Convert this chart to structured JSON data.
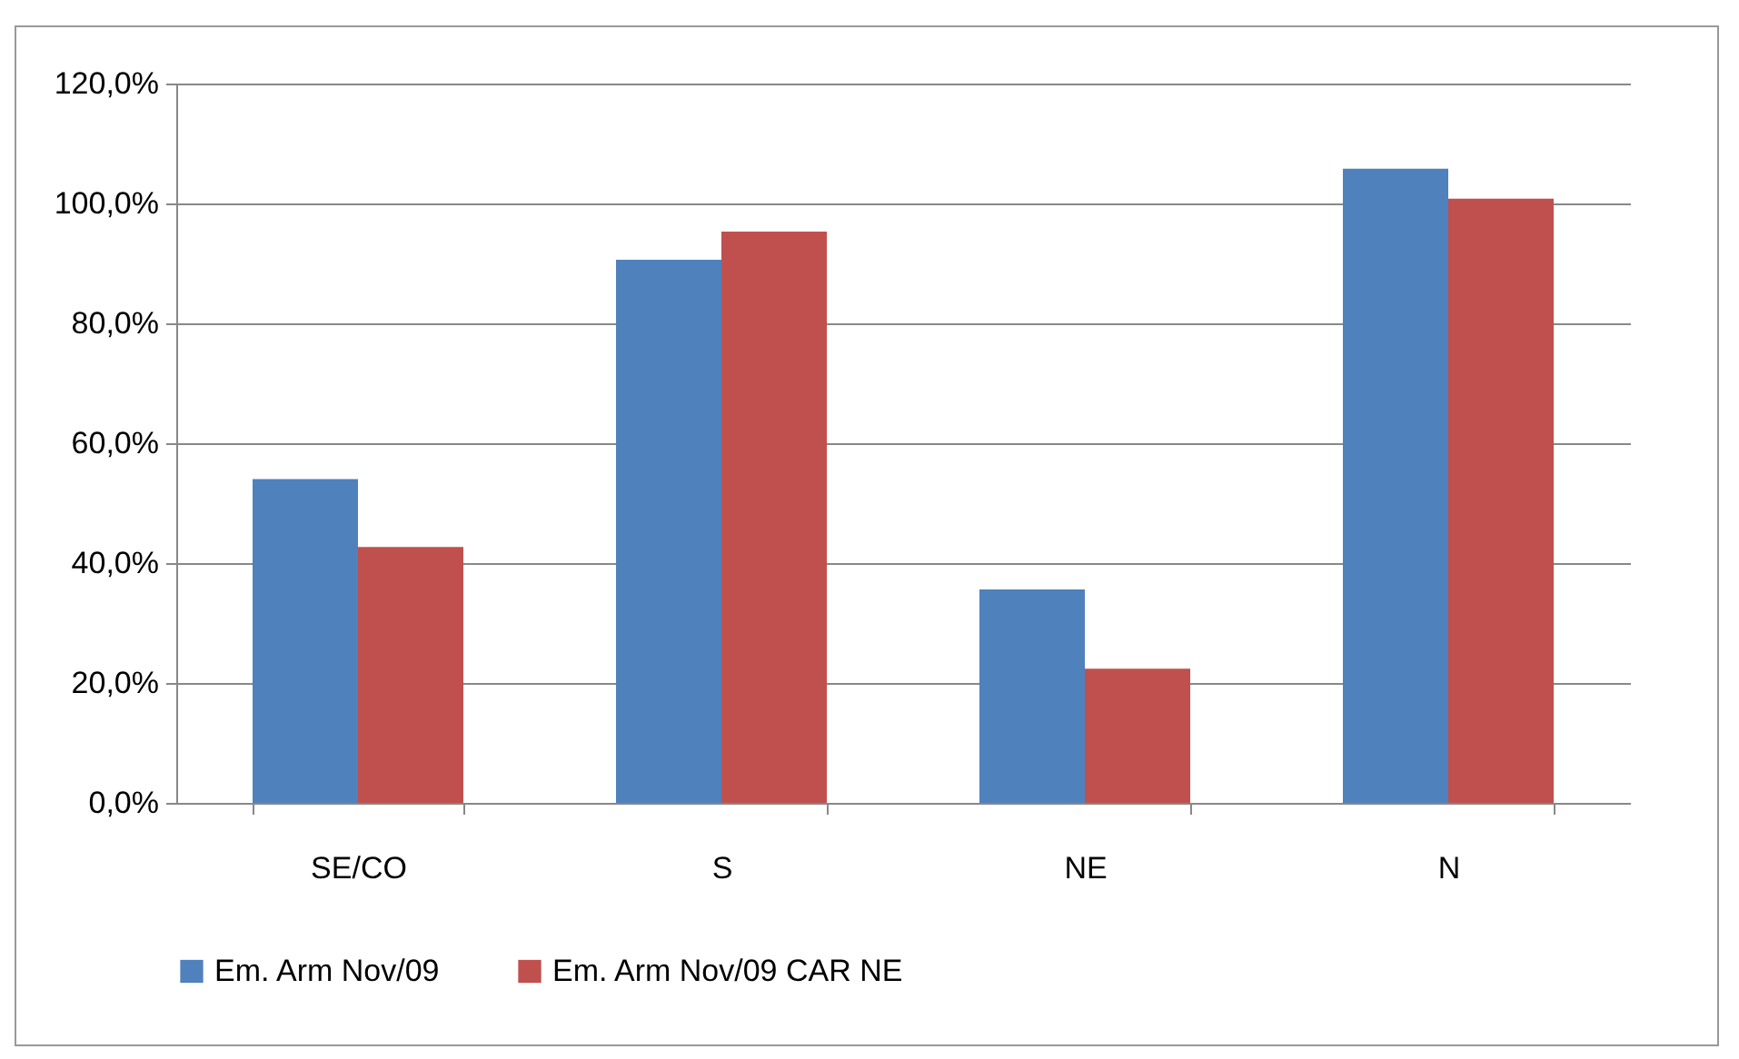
{
  "chart_data": {
    "type": "bar",
    "categories": [
      "SE/CO",
      "S",
      "NE",
      "N"
    ],
    "series": [
      {
        "name": "Em. Arm Nov/09",
        "color": "#4f81bd",
        "values": [
          54.0,
          90.6,
          35.6,
          105.8
        ]
      },
      {
        "name": "Em. Arm Nov/09 CAR NE",
        "color": "#c0504d",
        "values": [
          42.7,
          95.3,
          22.4,
          100.8
        ]
      }
    ],
    "ylim": [
      0,
      120
    ],
    "yticks": [
      {
        "value": 0,
        "label": "0,0%"
      },
      {
        "value": 20,
        "label": "20,0%"
      },
      {
        "value": 40,
        "label": "40,0%"
      },
      {
        "value": 60,
        "label": "60,0%"
      },
      {
        "value": 80,
        "label": "80,0%"
      },
      {
        "value": 100,
        "label": "100,0%"
      },
      {
        "value": 120,
        "label": "120,0%"
      }
    ],
    "grid": "y",
    "legend": "bottom"
  }
}
